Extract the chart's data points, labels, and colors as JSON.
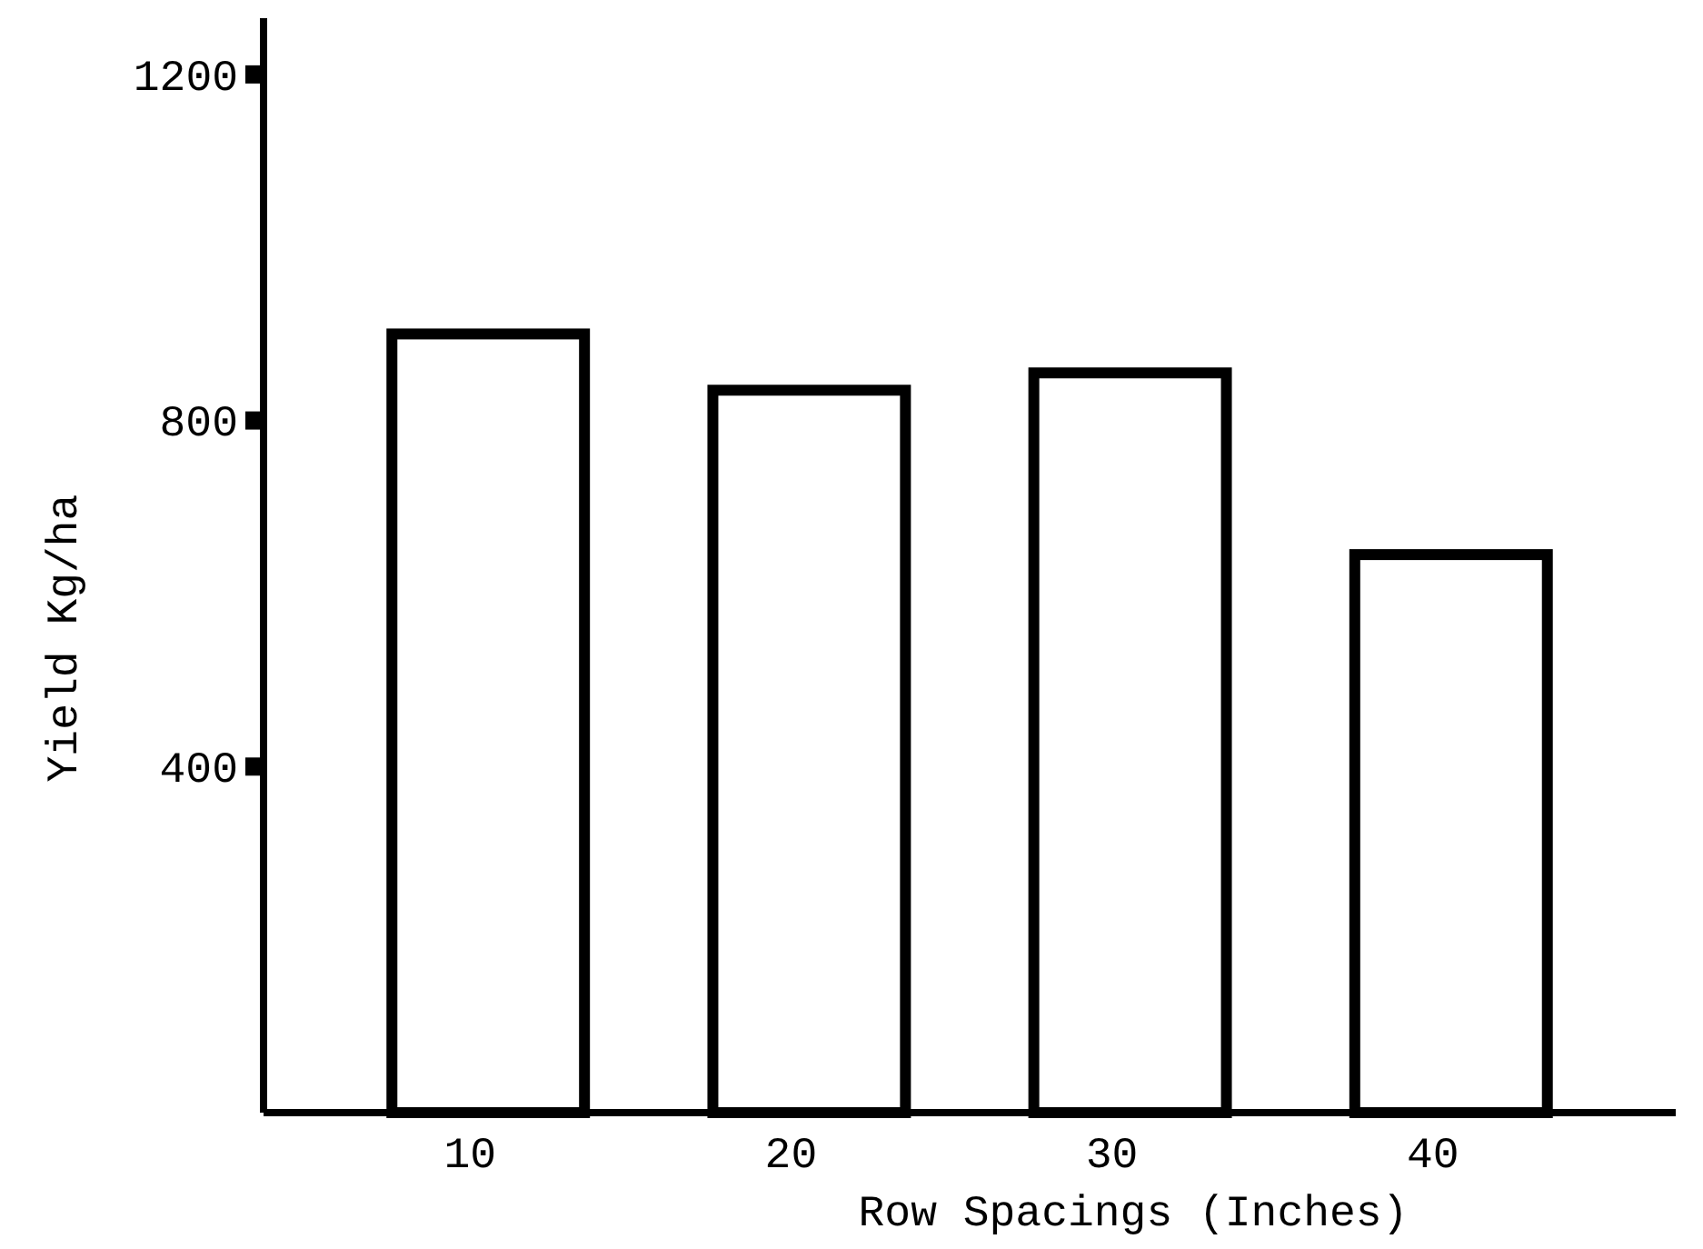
{
  "chart_data": {
    "type": "bar",
    "xlabel": "Row Spacings (Inches)",
    "ylabel": "Yield Kg/ha",
    "categories": [
      "10",
      "20",
      "30",
      "40"
    ],
    "values": [
      900,
      835,
      855,
      645
    ],
    "color": "#ffffff",
    "ylim": [
      0,
      1265
    ],
    "yticks": [
      400,
      800,
      1200
    ],
    "grid": false
  }
}
